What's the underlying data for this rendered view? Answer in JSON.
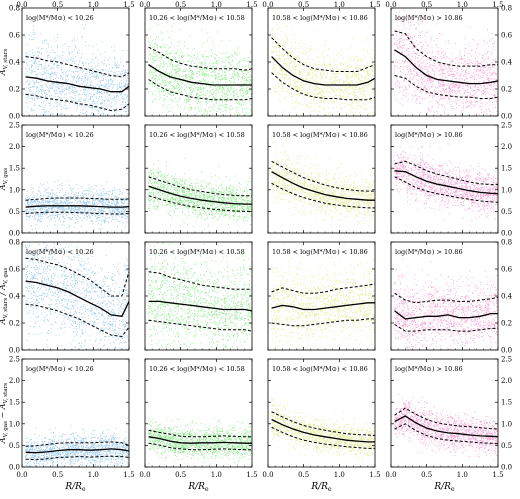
{
  "colors": {
    "low": "#4a9fe0",
    "mid": "#33dd33",
    "high": "#d8dc4c",
    "top": "#f058b8",
    "line": "#000000"
  },
  "x_axis": {
    "label": "R/R_e",
    "label_main": "R/R",
    "label_sub": "e",
    "range": [
      0,
      1.5
    ],
    "ticks": [
      "0.0",
      "0.5",
      "1.0",
      "1.5"
    ]
  },
  "columns": [
    {
      "key": "low",
      "mass_label": "log(M*/M⊙) < 10.26"
    },
    {
      "key": "mid",
      "mass_label": "10.26 < log(M*/M⊙) < 10.58"
    },
    {
      "key": "high",
      "mass_label": "10.58 < log(M*/M⊙) < 10.86"
    },
    {
      "key": "top",
      "mass_label": "log(M*/M⊙) > 10.86"
    }
  ],
  "rows": [
    {
      "ylabel": "A_V,stars",
      "ylabel_main": "A",
      "ylabel_sub": "V, stars",
      "ylim": [
        0,
        0.8
      ],
      "ticks": [
        "0.0",
        "0.2",
        "0.4",
        "0.6",
        "0.8"
      ]
    },
    {
      "ylabel": "A_V,gas",
      "ylabel_main": "A",
      "ylabel_sub": "V, gas",
      "ylim": [
        0,
        2.5
      ],
      "ticks": [
        "0.0",
        "0.5",
        "1.0",
        "1.5",
        "2.0",
        "2.5"
      ]
    },
    {
      "ylabel": "A_V,stars / A_V,gas",
      "ylabel_main": "A",
      "ylabel_sub": "V, stars",
      "ylabel_main2": "/ A",
      "ylabel_sub2": "V, gas",
      "ylim": [
        0,
        0.8
      ],
      "ticks": [
        "0.0",
        "0.2",
        "0.4",
        "0.6",
        "0.8"
      ]
    },
    {
      "ylabel": "A_V,gas − A_V,stars",
      "ylabel_main": "A",
      "ylabel_sub": "V, gas",
      "ylabel_main2": "− A",
      "ylabel_sub2": "V, stars",
      "ylim": [
        0,
        2.5
      ],
      "ticks": [
        "0.0",
        "0.5",
        "1.0",
        "1.5",
        "2.0",
        "2.5"
      ]
    }
  ],
  "chart_data": {
    "type": "scatter",
    "x": [
      0.05,
      0.2,
      0.35,
      0.5,
      0.65,
      0.8,
      0.95,
      1.1,
      1.25,
      1.4,
      1.5
    ],
    "panels": [
      {
        "row": 0,
        "col": 0,
        "median": [
          0.29,
          0.28,
          0.26,
          0.25,
          0.24,
          0.22,
          0.21,
          0.2,
          0.18,
          0.18,
          0.22
        ],
        "p84": [
          0.44,
          0.43,
          0.41,
          0.4,
          0.38,
          0.36,
          0.34,
          0.32,
          0.3,
          0.29,
          0.32
        ],
        "p16": [
          0.16,
          0.15,
          0.13,
          0.12,
          0.11,
          0.09,
          0.08,
          0.06,
          0.04,
          0.05,
          0.09
        ]
      },
      {
        "row": 0,
        "col": 1,
        "median": [
          0.38,
          0.33,
          0.29,
          0.27,
          0.25,
          0.24,
          0.23,
          0.23,
          0.23,
          0.23,
          0.23
        ],
        "p84": [
          0.51,
          0.47,
          0.42,
          0.39,
          0.37,
          0.36,
          0.35,
          0.35,
          0.35,
          0.34,
          0.35
        ],
        "p16": [
          0.27,
          0.22,
          0.18,
          0.16,
          0.14,
          0.13,
          0.12,
          0.12,
          0.12,
          0.12,
          0.13
        ]
      },
      {
        "row": 0,
        "col": 2,
        "median": [
          0.44,
          0.36,
          0.3,
          0.26,
          0.24,
          0.23,
          0.23,
          0.23,
          0.23,
          0.25,
          0.28
        ],
        "p84": [
          0.58,
          0.5,
          0.43,
          0.38,
          0.35,
          0.34,
          0.33,
          0.33,
          0.33,
          0.36,
          0.38
        ],
        "p16": [
          0.32,
          0.25,
          0.2,
          0.16,
          0.14,
          0.13,
          0.13,
          0.12,
          0.12,
          0.12,
          0.14
        ]
      },
      {
        "row": 0,
        "col": 3,
        "median": [
          0.49,
          0.44,
          0.36,
          0.3,
          0.27,
          0.26,
          0.25,
          0.24,
          0.24,
          0.25,
          0.26
        ],
        "p84": [
          0.63,
          0.61,
          0.5,
          0.44,
          0.4,
          0.38,
          0.37,
          0.37,
          0.37,
          0.38,
          0.38
        ],
        "p16": [
          0.3,
          0.28,
          0.22,
          0.18,
          0.16,
          0.15,
          0.14,
          0.14,
          0.13,
          0.13,
          0.14
        ]
      },
      {
        "row": 1,
        "col": 0,
        "median": [
          0.6,
          0.62,
          0.63,
          0.63,
          0.63,
          0.63,
          0.62,
          0.61,
          0.6,
          0.6,
          0.61
        ],
        "p84": [
          0.76,
          0.78,
          0.8,
          0.81,
          0.81,
          0.81,
          0.8,
          0.79,
          0.78,
          0.78,
          0.79
        ],
        "p16": [
          0.45,
          0.47,
          0.48,
          0.48,
          0.48,
          0.47,
          0.46,
          0.45,
          0.44,
          0.44,
          0.45
        ]
      },
      {
        "row": 1,
        "col": 1,
        "median": [
          1.08,
          1.0,
          0.92,
          0.85,
          0.8,
          0.76,
          0.73,
          0.7,
          0.68,
          0.67,
          0.67
        ],
        "p84": [
          1.3,
          1.22,
          1.14,
          1.06,
          1.0,
          0.96,
          0.92,
          0.89,
          0.87,
          0.86,
          0.86
        ],
        "p16": [
          0.86,
          0.79,
          0.72,
          0.66,
          0.61,
          0.58,
          0.55,
          0.53,
          0.51,
          0.5,
          0.5
        ]
      },
      {
        "row": 1,
        "col": 2,
        "median": [
          1.42,
          1.28,
          1.15,
          1.04,
          0.96,
          0.89,
          0.84,
          0.8,
          0.78,
          0.76,
          0.76
        ],
        "p84": [
          1.66,
          1.53,
          1.4,
          1.28,
          1.19,
          1.11,
          1.05,
          1.01,
          0.98,
          0.97,
          0.97
        ],
        "p16": [
          1.15,
          1.02,
          0.91,
          0.82,
          0.75,
          0.69,
          0.65,
          0.62,
          0.6,
          0.58,
          0.58
        ]
      },
      {
        "row": 1,
        "col": 3,
        "median": [
          1.44,
          1.42,
          1.3,
          1.2,
          1.13,
          1.08,
          1.03,
          0.98,
          0.94,
          0.92,
          0.91
        ],
        "p84": [
          1.6,
          1.66,
          1.56,
          1.44,
          1.36,
          1.3,
          1.24,
          1.18,
          1.14,
          1.12,
          1.12
        ],
        "p16": [
          1.3,
          1.18,
          1.05,
          0.97,
          0.91,
          0.86,
          0.82,
          0.78,
          0.74,
          0.72,
          0.71
        ]
      },
      {
        "row": 2,
        "col": 0,
        "median": [
          0.51,
          0.5,
          0.48,
          0.46,
          0.43,
          0.39,
          0.35,
          0.31,
          0.26,
          0.25,
          0.36
        ],
        "p84": [
          0.68,
          0.67,
          0.65,
          0.63,
          0.6,
          0.56,
          0.52,
          0.46,
          0.4,
          0.4,
          0.58
        ],
        "p16": [
          0.34,
          0.33,
          0.31,
          0.29,
          0.26,
          0.23,
          0.19,
          0.15,
          0.11,
          0.1,
          0.17
        ]
      },
      {
        "row": 2,
        "col": 1,
        "median": [
          0.36,
          0.36,
          0.35,
          0.34,
          0.33,
          0.32,
          0.31,
          0.3,
          0.3,
          0.3,
          0.29
        ],
        "p84": [
          0.58,
          0.57,
          0.54,
          0.52,
          0.5,
          0.48,
          0.47,
          0.46,
          0.45,
          0.45,
          0.45
        ],
        "p16": [
          0.22,
          0.21,
          0.2,
          0.19,
          0.18,
          0.17,
          0.16,
          0.15,
          0.15,
          0.15,
          0.14
        ]
      },
      {
        "row": 2,
        "col": 2,
        "median": [
          0.31,
          0.33,
          0.32,
          0.3,
          0.3,
          0.31,
          0.32,
          0.33,
          0.34,
          0.35,
          0.35
        ],
        "p84": [
          0.43,
          0.46,
          0.44,
          0.42,
          0.42,
          0.43,
          0.45,
          0.46,
          0.47,
          0.48,
          0.49
        ],
        "p16": [
          0.2,
          0.19,
          0.18,
          0.18,
          0.19,
          0.2,
          0.21,
          0.22,
          0.22,
          0.23,
          0.23
        ]
      },
      {
        "row": 2,
        "col": 3,
        "median": [
          0.29,
          0.23,
          0.24,
          0.25,
          0.25,
          0.26,
          0.24,
          0.24,
          0.25,
          0.27,
          0.27
        ],
        "p84": [
          0.42,
          0.37,
          0.35,
          0.36,
          0.37,
          0.37,
          0.36,
          0.36,
          0.37,
          0.38,
          0.39
        ],
        "p16": [
          0.19,
          0.14,
          0.14,
          0.15,
          0.15,
          0.15,
          0.14,
          0.14,
          0.15,
          0.16,
          0.16
        ]
      },
      {
        "row": 3,
        "col": 0,
        "median": [
          0.34,
          0.33,
          0.35,
          0.38,
          0.4,
          0.4,
          0.39,
          0.4,
          0.42,
          0.4,
          0.37
        ],
        "p84": [
          0.48,
          0.49,
          0.52,
          0.55,
          0.56,
          0.56,
          0.56,
          0.57,
          0.58,
          0.56,
          0.5
        ],
        "p16": [
          0.18,
          0.17,
          0.19,
          0.22,
          0.23,
          0.24,
          0.23,
          0.24,
          0.25,
          0.24,
          0.22
        ]
      },
      {
        "row": 3,
        "col": 1,
        "median": [
          0.7,
          0.66,
          0.6,
          0.56,
          0.55,
          0.56,
          0.56,
          0.57,
          0.56,
          0.55,
          0.55
        ],
        "p84": [
          0.85,
          0.8,
          0.76,
          0.71,
          0.7,
          0.7,
          0.71,
          0.72,
          0.71,
          0.7,
          0.7
        ],
        "p16": [
          0.55,
          0.51,
          0.45,
          0.42,
          0.4,
          0.4,
          0.41,
          0.42,
          0.41,
          0.4,
          0.4
        ]
      },
      {
        "row": 3,
        "col": 2,
        "median": [
          1.1,
          0.98,
          0.88,
          0.8,
          0.74,
          0.7,
          0.66,
          0.62,
          0.6,
          0.58,
          0.58
        ],
        "p84": [
          1.28,
          1.16,
          1.05,
          0.96,
          0.9,
          0.85,
          0.81,
          0.77,
          0.75,
          0.74,
          0.73
        ],
        "p16": [
          0.92,
          0.8,
          0.7,
          0.62,
          0.57,
          0.53,
          0.5,
          0.47,
          0.45,
          0.43,
          0.43
        ]
      },
      {
        "row": 3,
        "col": 3,
        "median": [
          1.05,
          1.18,
          1.02,
          0.9,
          0.83,
          0.79,
          0.77,
          0.74,
          0.72,
          0.71,
          0.7
        ],
        "p84": [
          1.2,
          1.36,
          1.22,
          1.1,
          1.02,
          0.98,
          0.95,
          0.93,
          0.91,
          0.89,
          0.88
        ],
        "p16": [
          0.88,
          1.0,
          0.84,
          0.73,
          0.66,
          0.62,
          0.6,
          0.58,
          0.56,
          0.55,
          0.54
        ]
      }
    ]
  }
}
